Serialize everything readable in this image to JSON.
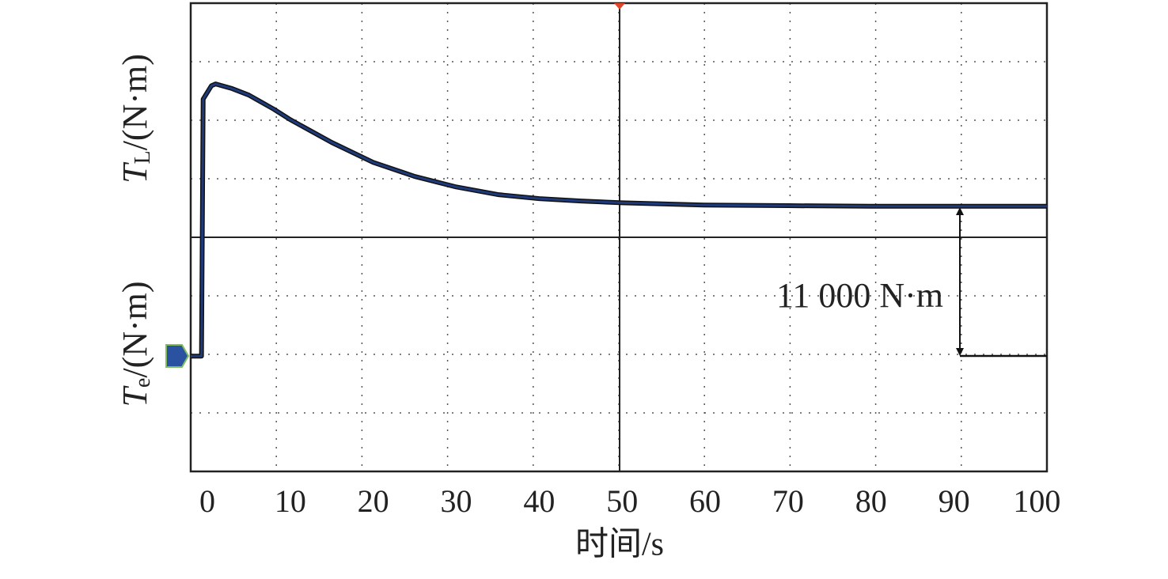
{
  "chart_data": {
    "type": "line",
    "xlabel": "时间/s",
    "ylabels": [
      {
        "symbol": "T",
        "subscript": "L",
        "unit": "/(N·m)"
      },
      {
        "symbol": "T",
        "subscript": "e",
        "unit": "/(N·m)"
      }
    ],
    "annotation": "11 000 N·m",
    "xlim": [
      -2,
      101.2
    ],
    "ylim": [
      -4,
      4
    ],
    "xticks": [
      0,
      10,
      20,
      30,
      40,
      50,
      60,
      70,
      80,
      90,
      100
    ],
    "series": [
      {
        "color": "#1f3a7a",
        "x": [
          -2,
          -0.7,
          -0.5,
          0.5,
          1,
          3,
          5,
          8,
          10,
          15,
          20,
          25,
          30,
          35,
          40,
          45,
          50,
          60,
          70,
          80,
          101.2
        ],
        "values": [
          -2.03,
          -2.03,
          2.36,
          2.59,
          2.62,
          2.54,
          2.43,
          2.19,
          2.01,
          1.62,
          1.28,
          1.04,
          0.86,
          0.73,
          0.66,
          0.62,
          0.59,
          0.55,
          0.54,
          0.53,
          0.53
        ]
      }
    ]
  }
}
